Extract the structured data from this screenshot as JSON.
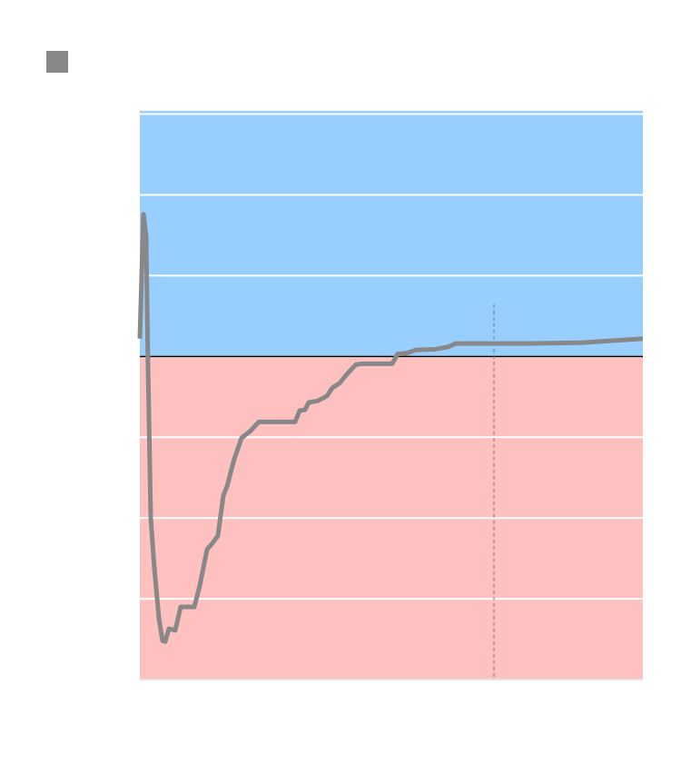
{
  "chart_data": {
    "type": "line",
    "x": [
      0,
      0.72,
      1.26,
      1.62,
      2.17,
      2.89,
      3.79,
      4.51,
      5.05,
      5.78,
      7.04,
      8.12,
      10.83,
      11.91,
      13.36,
      14.44,
      15.52,
      16.61,
      17.33,
      18.77,
      20.22,
      22.02,
      23.65,
      30.87,
      31.77,
      32.85,
      33.57,
      35.38,
      37.18,
      38.27,
      39.71,
      41.16,
      42.96,
      44.4,
      50.18,
      51.26,
      53.07,
      54.87,
      58.84,
      61.37,
      62.82,
      76.9,
      87.73,
      100
    ],
    "series": [
      {
        "color": "#888888",
        "values": [
          0.22,
          1.76,
          1.48,
          -0.09,
          -2.0,
          -2.62,
          -3.24,
          -3.52,
          -3.53,
          -3.37,
          -3.39,
          -3.1,
          -3.1,
          -2.84,
          -2.39,
          -2.31,
          -2.22,
          -1.72,
          -1.61,
          -1.27,
          -1.01,
          -0.92,
          -0.81,
          -0.81,
          -0.67,
          -0.66,
          -0.57,
          -0.55,
          -0.49,
          -0.39,
          -0.33,
          -0.22,
          -0.1,
          -0.09,
          -0.09,
          0.03,
          0.04,
          0.08,
          0.09,
          0.12,
          0.16,
          0.16,
          0.17,
          0.22
        ]
      }
    ],
    "xlim": [
      0,
      100
    ],
    "ylim": [
      -4,
      3.04
    ],
    "yticks": [
      -4,
      -3,
      -2,
      -1,
      0,
      1,
      2,
      3
    ],
    "grid": true,
    "fill_above": "#99cfff",
    "fill_below": "#ffc0c0",
    "baseline": 0,
    "vlines": [
      70.4
    ]
  }
}
